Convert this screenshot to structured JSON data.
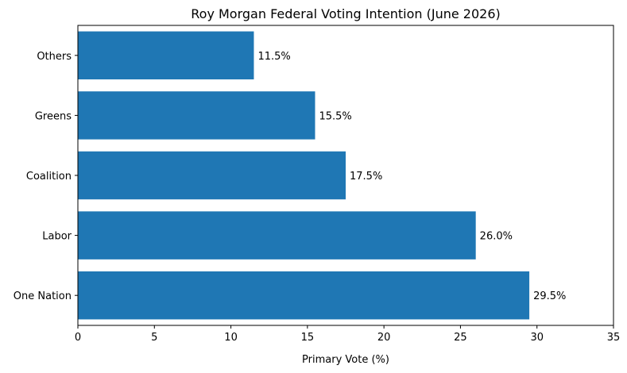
{
  "chart_data": {
    "type": "bar",
    "orientation": "horizontal",
    "title": "Roy Morgan Federal Voting Intention (June 2026)",
    "xlabel": "Primary Vote (%)",
    "ylabel": "",
    "categories": [
      "One Nation",
      "Labor",
      "Coalition",
      "Greens",
      "Others"
    ],
    "values": [
      29.5,
      26.0,
      17.5,
      15.5,
      11.5
    ],
    "data_labels": [
      "29.5%",
      "26.0%",
      "17.5%",
      "15.5%",
      "11.5%"
    ],
    "xlim": [
      0,
      35
    ],
    "xticks": [
      0,
      5,
      10,
      15,
      20,
      25,
      30,
      35
    ],
    "grid": false,
    "bar_color": "#1f77b4"
  }
}
